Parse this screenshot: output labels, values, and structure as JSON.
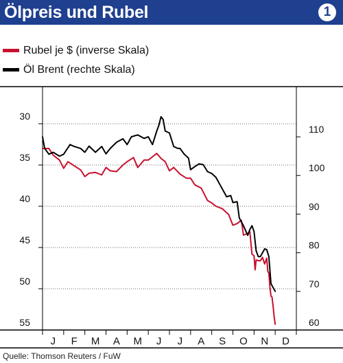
{
  "header": {
    "title": "Ölpreis und Rubel",
    "badge": "1"
  },
  "legend": {
    "rubel": {
      "label": "Rubel je $ (inverse Skala)",
      "color": "#c8102e"
    },
    "oil": {
      "label": "Öl Brent (rechte Skala)",
      "color": "#000000"
    }
  },
  "source": "Quelle: Thomson Reuters / FuW",
  "chart_data": {
    "type": "line",
    "months": [
      "J",
      "F",
      "M",
      "A",
      "M",
      "J",
      "J",
      "A",
      "S",
      "O",
      "N",
      "D"
    ],
    "x_unit": "month index (0 = start of January 2014)",
    "left_axis": {
      "ticks": [
        "30",
        "35",
        "40",
        "45",
        "50",
        "55"
      ],
      "values": [
        30,
        35,
        40,
        45,
        50,
        55
      ],
      "inverted": true,
      "range": [
        25.5,
        55
      ]
    },
    "right_axis": {
      "ticks": [
        "110",
        "100",
        "90",
        "80",
        "70",
        "60"
      ],
      "values": [
        110,
        100,
        90,
        80,
        70,
        60
      ],
      "range": [
        60,
        123
      ]
    },
    "grid": "horizontal dotted",
    "series": [
      {
        "name": "Rubel je $ (inverse Skala)",
        "axis": "left",
        "color": "#c8102e",
        "x": [
          0,
          0.3,
          0.5,
          0.8,
          1.0,
          1.2,
          1.5,
          1.8,
          2.0,
          2.2,
          2.5,
          2.8,
          3.0,
          3.2,
          3.5,
          3.8,
          4.0,
          4.3,
          4.5,
          4.8,
          5.0,
          5.2,
          5.4,
          5.6,
          5.8,
          6.0,
          6.2,
          6.5,
          6.8,
          7.0,
          7.2,
          7.5,
          7.8,
          8.0,
          8.2,
          8.5,
          8.8,
          9.0,
          9.2,
          9.4,
          9.5,
          9.7,
          9.8,
          9.9,
          10.0,
          10.05,
          10.1,
          10.2,
          10.3,
          10.4,
          10.5,
          10.6,
          10.65,
          10.7,
          10.75,
          10.8,
          10.85,
          10.9,
          10.95,
          11.0
        ],
        "y": [
          33,
          33,
          33.8,
          34.4,
          35.4,
          34.6,
          35.1,
          35.6,
          36.4,
          36.0,
          35.9,
          36.2,
          35.3,
          35.7,
          35.8,
          35.0,
          34.6,
          34.1,
          35.3,
          34.4,
          34.4,
          34.0,
          33.6,
          34.2,
          34.6,
          35.7,
          35.3,
          36.1,
          36.6,
          36.6,
          37.4,
          37.8,
          39.3,
          39.6,
          40.0,
          40.3,
          41.0,
          42.3,
          42.1,
          41.7,
          43.5,
          43.3,
          43.1,
          45.8,
          46.0,
          47.7,
          46.5,
          46.6,
          46.6,
          46.2,
          47.0,
          46.3,
          47.9,
          48.1,
          49.8,
          50.9,
          51.0,
          52.1,
          53.4,
          54.3
        ]
      },
      {
        "name": "Öl Brent (rechte Skala)",
        "axis": "right",
        "color": "#000000",
        "x": [
          0,
          0.1,
          0.3,
          0.5,
          0.8,
          1.0,
          1.3,
          1.5,
          1.8,
          2.0,
          2.2,
          2.5,
          2.8,
          3.0,
          3.2,
          3.5,
          3.8,
          4.0,
          4.2,
          4.5,
          4.8,
          5.0,
          5.2,
          5.4,
          5.5,
          5.6,
          5.7,
          5.8,
          6.0,
          6.2,
          6.4,
          6.5,
          6.7,
          6.9,
          7.0,
          7.2,
          7.4,
          7.6,
          7.8,
          8.0,
          8.2,
          8.4,
          8.5,
          8.7,
          8.9,
          9.0,
          9.2,
          9.3,
          9.5,
          9.7,
          9.8,
          9.9,
          10.0,
          10.1,
          10.2,
          10.3,
          10.5,
          10.6,
          10.7,
          10.8,
          10.9,
          11.0
        ],
        "y": [
          110,
          107,
          105.5,
          106,
          105,
          105.5,
          108,
          107.5,
          107,
          106,
          107.6,
          106,
          107.5,
          105.6,
          107,
          108.6,
          109.5,
          108,
          110,
          110.5,
          109.6,
          110,
          108,
          111.5,
          113,
          115.2,
          114.5,
          111.5,
          111,
          107.5,
          107,
          107,
          105.5,
          104.5,
          101.5,
          102.3,
          103,
          102.8,
          101,
          100.5,
          99.5,
          97.5,
          96.5,
          94.5,
          94.8,
          93,
          93.2,
          89,
          87,
          84.5,
          86,
          87,
          85.5,
          80.5,
          79,
          79,
          81,
          80.8,
          79,
          72,
          71,
          70
        ]
      }
    ]
  }
}
